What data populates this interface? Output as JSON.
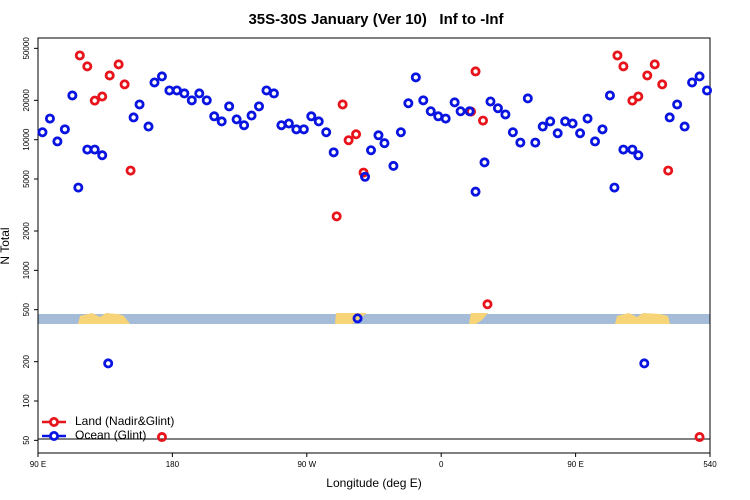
{
  "chart_data": {
    "type": "scatter",
    "title": "35S-30S January (Ver 10)   Inf to -Inf",
    "x_label": "Longitude (deg E)",
    "y_label": "N Total",
    "log_y": true,
    "legend": "lower left",
    "xlim": [
      90,
      540
    ],
    "xticks": [
      {
        "value": 90,
        "label": "90 E"
      },
      180,
      {
        "value": 270,
        "label": "90 W"
      },
      {
        "value": 360,
        "label": "0"
      },
      {
        "value": 450,
        "label": "90 E"
      },
      540
    ],
    "ylim": [
      40,
      60000
    ],
    "yticks": [
      50,
      100,
      200,
      500,
      1000,
      2000,
      5000,
      10000,
      20000,
      50000
    ],
    "series": [
      {
        "name": "Land (Nadir&Glint)",
        "color": "#e8141c",
        "x": [
          118,
          123,
          128,
          133,
          138,
          144,
          148,
          152,
          173,
          290,
          294,
          298,
          303,
          308,
          380,
          383,
          388,
          391,
          478,
          482,
          488,
          492,
          498,
          503,
          508,
          512,
          533
        ],
        "values": [
          44100,
          36400,
          19900,
          21400,
          31000,
          37700,
          26500,
          5800,
          53,
          2590,
          18600,
          9900,
          11000,
          5600,
          16400,
          33300,
          14000,
          550,
          44100,
          36400,
          19900,
          21400,
          31000,
          37700,
          26500,
          5800,
          53
        ]
      },
      {
        "name": "Ocean (Glint)",
        "color": "#0a14e0",
        "x": [
          93,
          98,
          103,
          108,
          113,
          117,
          123,
          128,
          133,
          137,
          154,
          158,
          164,
          168,
          173,
          178,
          183,
          188,
          193,
          198,
          203,
          208,
          213,
          218,
          223,
          228,
          233,
          238,
          243,
          248,
          253,
          258,
          263,
          268,
          273,
          278,
          283,
          288,
          304,
          309,
          313,
          318,
          322,
          328,
          333,
          338,
          343,
          348,
          353,
          358,
          363,
          369,
          373,
          379,
          383,
          389,
          393,
          398,
          403,
          408,
          413,
          418,
          423,
          428,
          433,
          438,
          443,
          448,
          453,
          458,
          463,
          468,
          473,
          476,
          482,
          488,
          492,
          496,
          513,
          518,
          523,
          528,
          533,
          538
        ],
        "values": [
          11400,
          14500,
          9700,
          12000,
          21800,
          4300,
          8400,
          8400,
          7600,
          194,
          14800,
          18600,
          12600,
          27400,
          30500,
          23800,
          23800,
          22600,
          20000,
          22600,
          20000,
          15100,
          13800,
          18000,
          14300,
          12900,
          15300,
          18000,
          23800,
          22600,
          12900,
          13300,
          12000,
          12000,
          15100,
          13800,
          11400,
          8000,
          429,
          5200,
          8300,
          10800,
          9400,
          6300,
          11400,
          19000,
          30000,
          20000,
          16500,
          15100,
          14500,
          19300,
          16500,
          16500,
          4000,
          6700,
          19600,
          17400,
          15600,
          11400,
          9500,
          20700,
          9500,
          12600,
          13800,
          11200,
          13800,
          13300,
          11200,
          14500,
          9700,
          12000,
          21800,
          4300,
          8400,
          8400,
          7600,
          194,
          14800,
          18600,
          12600,
          27400,
          30500,
          23800
        ]
      }
    ]
  }
}
